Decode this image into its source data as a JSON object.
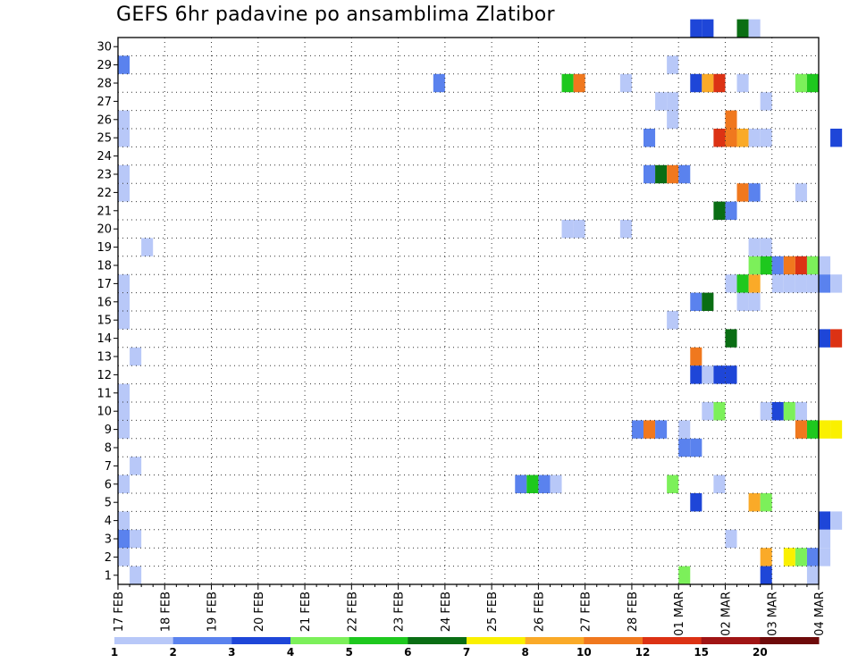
{
  "chart_data": {
    "type": "heatmap",
    "title": "GEFS 6hr padavine po ansamblima Zlatibor",
    "xlabel": "",
    "ylabel": "",
    "x_start": "17 FEB",
    "x_step_hours": 6,
    "x_tick_labels": [
      "17 FEB",
      "18 FEB",
      "19 FEB",
      "20 FEB",
      "21 FEB",
      "22 FEB",
      "23 FEB",
      "24 FEB",
      "25 FEB",
      "26 FEB",
      "27 FEB",
      "28 FEB",
      "01 MAR",
      "02 MAR",
      "03 MAR",
      "04 MAR"
    ],
    "y_tick_labels": [
      "1",
      "2",
      "3",
      "4",
      "5",
      "6",
      "7",
      "8",
      "9",
      "10",
      "11",
      "12",
      "13",
      "14",
      "15",
      "16",
      "17",
      "18",
      "19",
      "20",
      "21",
      "22",
      "23",
      "24",
      "25",
      "26",
      "27",
      "28",
      "29",
      "30"
    ],
    "y_range": [
      0,
      30
    ],
    "grid": true,
    "colorbar": {
      "labels": [
        "1",
        "2",
        "3",
        "4",
        "5",
        "6",
        "7",
        "8",
        "10",
        "12",
        "15",
        "20"
      ],
      "colors": [
        "#b8c8f8",
        "#5a82ee",
        "#1e46d8",
        "#7cf05a",
        "#1ec81e",
        "#0a6e14",
        "#faf000",
        "#faaa28",
        "#f0781e",
        "#dc3214",
        "#a01414",
        "#6e0a0a"
      ]
    },
    "cells": [
      [
        0,
        1,
        1
      ],
      [
        0,
        2,
        2
      ],
      [
        0,
        3,
        1
      ],
      [
        0,
        5,
        1
      ],
      [
        0,
        8,
        1
      ],
      [
        0,
        9,
        1
      ],
      [
        0,
        10,
        1
      ],
      [
        0,
        14,
        1
      ],
      [
        0,
        15,
        1
      ],
      [
        0,
        16,
        1
      ],
      [
        0,
        21,
        1
      ],
      [
        0,
        22,
        1
      ],
      [
        0,
        24,
        1
      ],
      [
        0,
        25,
        1
      ],
      [
        0,
        28,
        2
      ],
      [
        1,
        0,
        1
      ],
      [
        1,
        2,
        1
      ],
      [
        1,
        6,
        1
      ],
      [
        1,
        12,
        1
      ],
      [
        2,
        18,
        1
      ],
      [
        27,
        27,
        2
      ],
      [
        34,
        5,
        2
      ],
      [
        35,
        5,
        5
      ],
      [
        36,
        5,
        2
      ],
      [
        37,
        5,
        1
      ],
      [
        38,
        19,
        1
      ],
      [
        39,
        19,
        1
      ],
      [
        38,
        27,
        5
      ],
      [
        39,
        27,
        10
      ],
      [
        43,
        19,
        1
      ],
      [
        43,
        27,
        1
      ],
      [
        44,
        8,
        2
      ],
      [
        45,
        8,
        10
      ],
      [
        46,
        8,
        2
      ],
      [
        45,
        22,
        2
      ],
      [
        45,
        24,
        2
      ],
      [
        46,
        22,
        6
      ],
      [
        47,
        22,
        10
      ],
      [
        48,
        22,
        2
      ],
      [
        46,
        26,
        1
      ],
      [
        47,
        26,
        1
      ],
      [
        47,
        25,
        1
      ],
      [
        47,
        28,
        1
      ],
      [
        47,
        14,
        1
      ],
      [
        47,
        5,
        4
      ],
      [
        48,
        7,
        2
      ],
      [
        48,
        8,
        1
      ],
      [
        49,
        7,
        2
      ],
      [
        48,
        0,
        4
      ],
      [
        49,
        4,
        3
      ],
      [
        49,
        12,
        10
      ],
      [
        49,
        15,
        2
      ],
      [
        49,
        11,
        3
      ],
      [
        49,
        27,
        3
      ],
      [
        50,
        27,
        8
      ],
      [
        51,
        27,
        12
      ],
      [
        49,
        30,
        3
      ],
      [
        50,
        30,
        3
      ],
      [
        50,
        11,
        1
      ],
      [
        51,
        11,
        3
      ],
      [
        52,
        11,
        3
      ],
      [
        50,
        9,
        1
      ],
      [
        51,
        9,
        4
      ],
      [
        50,
        15,
        6
      ],
      [
        51,
        5,
        1
      ],
      [
        51,
        20,
        6
      ],
      [
        51,
        24,
        12
      ],
      [
        52,
        20,
        2
      ],
      [
        52,
        2,
        1
      ],
      [
        52,
        13,
        6
      ],
      [
        52,
        16,
        1
      ],
      [
        52,
        24,
        10
      ],
      [
        52,
        25,
        10
      ],
      [
        53,
        16,
        5
      ],
      [
        53,
        21,
        10
      ],
      [
        53,
        24,
        8
      ],
      [
        53,
        27,
        1
      ],
      [
        53,
        30,
        6
      ],
      [
        54,
        30,
        1
      ],
      [
        53,
        15,
        1
      ],
      [
        54,
        15,
        1
      ],
      [
        54,
        4,
        8
      ],
      [
        55,
        4,
        4
      ],
      [
        54,
        16,
        8
      ],
      [
        54,
        17,
        4
      ],
      [
        54,
        18,
        1
      ],
      [
        54,
        21,
        2
      ],
      [
        54,
        24,
        1
      ],
      [
        55,
        24,
        1
      ],
      [
        55,
        1,
        8
      ],
      [
        55,
        17,
        5
      ],
      [
        55,
        18,
        1
      ],
      [
        55,
        26,
        1
      ],
      [
        55,
        0,
        3
      ],
      [
        55,
        9,
        1
      ],
      [
        56,
        9,
        3
      ],
      [
        57,
        9,
        4
      ],
      [
        58,
        9,
        1
      ],
      [
        56,
        17,
        2
      ],
      [
        56,
        16,
        1
      ],
      [
        57,
        17,
        10
      ],
      [
        57,
        16,
        1
      ],
      [
        58,
        17,
        12
      ],
      [
        58,
        16,
        1
      ],
      [
        59,
        17,
        4
      ],
      [
        59,
        16,
        1
      ],
      [
        60,
        17,
        1
      ],
      [
        60,
        16,
        2
      ],
      [
        61,
        16,
        1
      ],
      [
        58,
        21,
        1
      ],
      [
        58,
        27,
        4
      ],
      [
        59,
        27,
        5
      ],
      [
        58,
        8,
        10
      ],
      [
        59,
        8,
        5
      ],
      [
        60,
        8,
        7
      ],
      [
        61,
        8,
        7
      ],
      [
        57,
        1,
        7
      ],
      [
        58,
        1,
        4
      ],
      [
        59,
        1,
        2
      ],
      [
        60,
        1,
        1
      ],
      [
        59,
        0,
        1
      ],
      [
        60,
        3,
        3
      ],
      [
        61,
        3,
        1
      ],
      [
        60,
        13,
        3
      ],
      [
        61,
        13,
        12
      ],
      [
        61,
        24,
        3
      ],
      [
        60,
        2,
        1
      ]
    ]
  }
}
